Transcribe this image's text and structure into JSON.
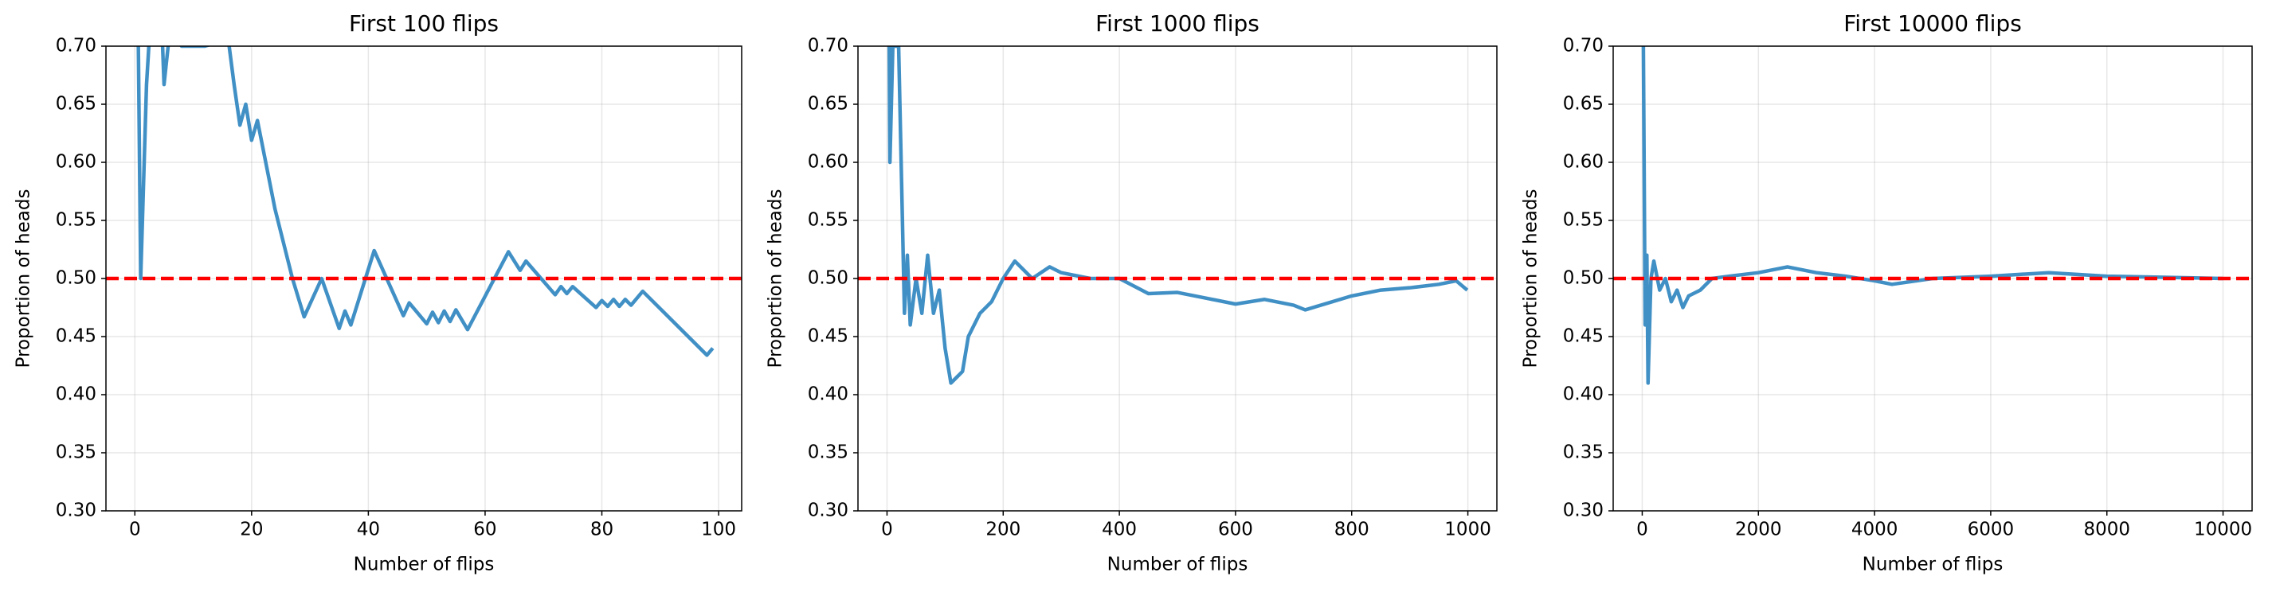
{
  "chart_data": [
    {
      "type": "line",
      "title": "First 100 flips",
      "x_label": "Number of flips",
      "y_label": "Proportion of heads",
      "x": [
        0,
        1,
        2,
        3,
        4,
        5,
        6,
        8,
        12,
        16,
        17,
        18,
        19,
        20,
        21,
        24,
        27,
        29,
        32,
        35,
        36,
        37,
        41,
        46,
        47,
        50,
        51,
        52,
        53,
        54,
        55,
        57,
        64,
        66,
        67,
        72,
        73,
        74,
        75,
        79,
        80,
        81,
        82,
        83,
        84,
        85,
        87,
        98,
        99
      ],
      "series": [
        {
          "color": "#4190c5",
          "values": [
            1.0,
            0.5,
            0.667,
            0.75,
            0.8,
            0.667,
            0.714,
            0.7,
            0.7,
            0.706,
            0.667,
            0.632,
            0.65,
            0.619,
            0.636,
            0.56,
            0.5,
            0.467,
            0.5,
            0.457,
            0.472,
            0.46,
            0.524,
            0.468,
            0.479,
            0.461,
            0.471,
            0.462,
            0.472,
            0.463,
            0.473,
            0.456,
            0.523,
            0.507,
            0.515,
            0.486,
            0.493,
            0.487,
            0.493,
            0.475,
            0.481,
            0.476,
            0.482,
            0.476,
            0.482,
            0.477,
            0.489,
            0.434,
            0.44
          ]
        }
      ],
      "reference_line": 0.5,
      "reference_color": "#ff0000",
      "xlim": [
        -4.95,
        103.95
      ],
      "ylim": [
        0.3,
        0.7
      ],
      "xticks": [
        0,
        20,
        40,
        60,
        80,
        100
      ],
      "yticks": [
        {
          "value": 0.3,
          "label": "0.30"
        },
        {
          "value": 0.35,
          "label": "0.35"
        },
        {
          "value": 0.4,
          "label": "0.40"
        },
        {
          "value": 0.45,
          "label": "0.45"
        },
        {
          "value": 0.5,
          "label": "0.50"
        },
        {
          "value": 0.55,
          "label": "0.55"
        },
        {
          "value": 0.6,
          "label": "0.60"
        },
        {
          "value": 0.65,
          "label": "0.65"
        },
        {
          "value": 0.7,
          "label": "0.70"
        }
      ],
      "grid": true
    },
    {
      "type": "line",
      "title": "First 1000 flips",
      "x_label": "Number of flips",
      "y_label": "Proportion of heads",
      "x": [
        0,
        5,
        10,
        20,
        30,
        35,
        40,
        50,
        60,
        70,
        80,
        90,
        100,
        110,
        120,
        130,
        140,
        160,
        180,
        200,
        220,
        250,
        280,
        300,
        350,
        400,
        450,
        500,
        550,
        600,
        650,
        700,
        720,
        800,
        850,
        900,
        950,
        980,
        999
      ],
      "series": [
        {
          "color": "#4190c5",
          "values": [
            1.0,
            0.6,
            0.7,
            0.7,
            0.47,
            0.52,
            0.46,
            0.5,
            0.47,
            0.52,
            0.47,
            0.49,
            0.44,
            0.41,
            0.415,
            0.42,
            0.45,
            0.47,
            0.48,
            0.5,
            0.515,
            0.5,
            0.51,
            0.505,
            0.5,
            0.5,
            0.487,
            0.488,
            0.483,
            0.478,
            0.482,
            0.477,
            0.473,
            0.485,
            0.49,
            0.492,
            0.495,
            0.498,
            0.49
          ]
        }
      ],
      "reference_line": 0.5,
      "reference_color": "#ff0000",
      "xlim": [
        -50,
        1049.95
      ],
      "ylim": [
        0.3,
        0.7
      ],
      "xticks": [
        0,
        200,
        400,
        600,
        800,
        1000
      ],
      "yticks": [
        {
          "value": 0.3,
          "label": "0.30"
        },
        {
          "value": 0.35,
          "label": "0.35"
        },
        {
          "value": 0.4,
          "label": "0.40"
        },
        {
          "value": 0.45,
          "label": "0.45"
        },
        {
          "value": 0.5,
          "label": "0.50"
        },
        {
          "value": 0.55,
          "label": "0.55"
        },
        {
          "value": 0.6,
          "label": "0.60"
        },
        {
          "value": 0.65,
          "label": "0.65"
        },
        {
          "value": 0.7,
          "label": "0.70"
        }
      ],
      "grid": true
    },
    {
      "type": "line",
      "title": "First 10000 flips",
      "x_label": "Number of flips",
      "y_label": "Proportion of heads",
      "x": [
        0,
        20,
        50,
        80,
        100,
        150,
        200,
        300,
        400,
        500,
        600,
        700,
        800,
        1000,
        1200,
        1500,
        2000,
        2500,
        3000,
        3500,
        4000,
        4300,
        5000,
        6000,
        7000,
        8000,
        9000,
        9999
      ],
      "series": [
        {
          "color": "#4190c5",
          "values": [
            1.0,
            0.7,
            0.46,
            0.52,
            0.41,
            0.5,
            0.515,
            0.49,
            0.5,
            0.48,
            0.49,
            0.475,
            0.485,
            0.49,
            0.5,
            0.502,
            0.505,
            0.51,
            0.505,
            0.502,
            0.498,
            0.495,
            0.5,
            0.502,
            0.505,
            0.502,
            0.501,
            0.5
          ]
        }
      ],
      "reference_line": 0.5,
      "reference_color": "#ff0000",
      "xlim": [
        -500,
        10500
      ],
      "ylim": [
        0.3,
        0.7
      ],
      "xticks": [
        0,
        2000,
        4000,
        6000,
        8000,
        10000
      ],
      "yticks": [
        {
          "value": 0.3,
          "label": "0.30"
        },
        {
          "value": 0.35,
          "label": "0.35"
        },
        {
          "value": 0.4,
          "label": "0.40"
        },
        {
          "value": 0.45,
          "label": "0.45"
        },
        {
          "value": 0.5,
          "label": "0.50"
        },
        {
          "value": 0.55,
          "label": "0.55"
        },
        {
          "value": 0.6,
          "label": "0.60"
        },
        {
          "value": 0.65,
          "label": "0.65"
        },
        {
          "value": 0.7,
          "label": "0.70"
        }
      ],
      "grid": true
    }
  ]
}
